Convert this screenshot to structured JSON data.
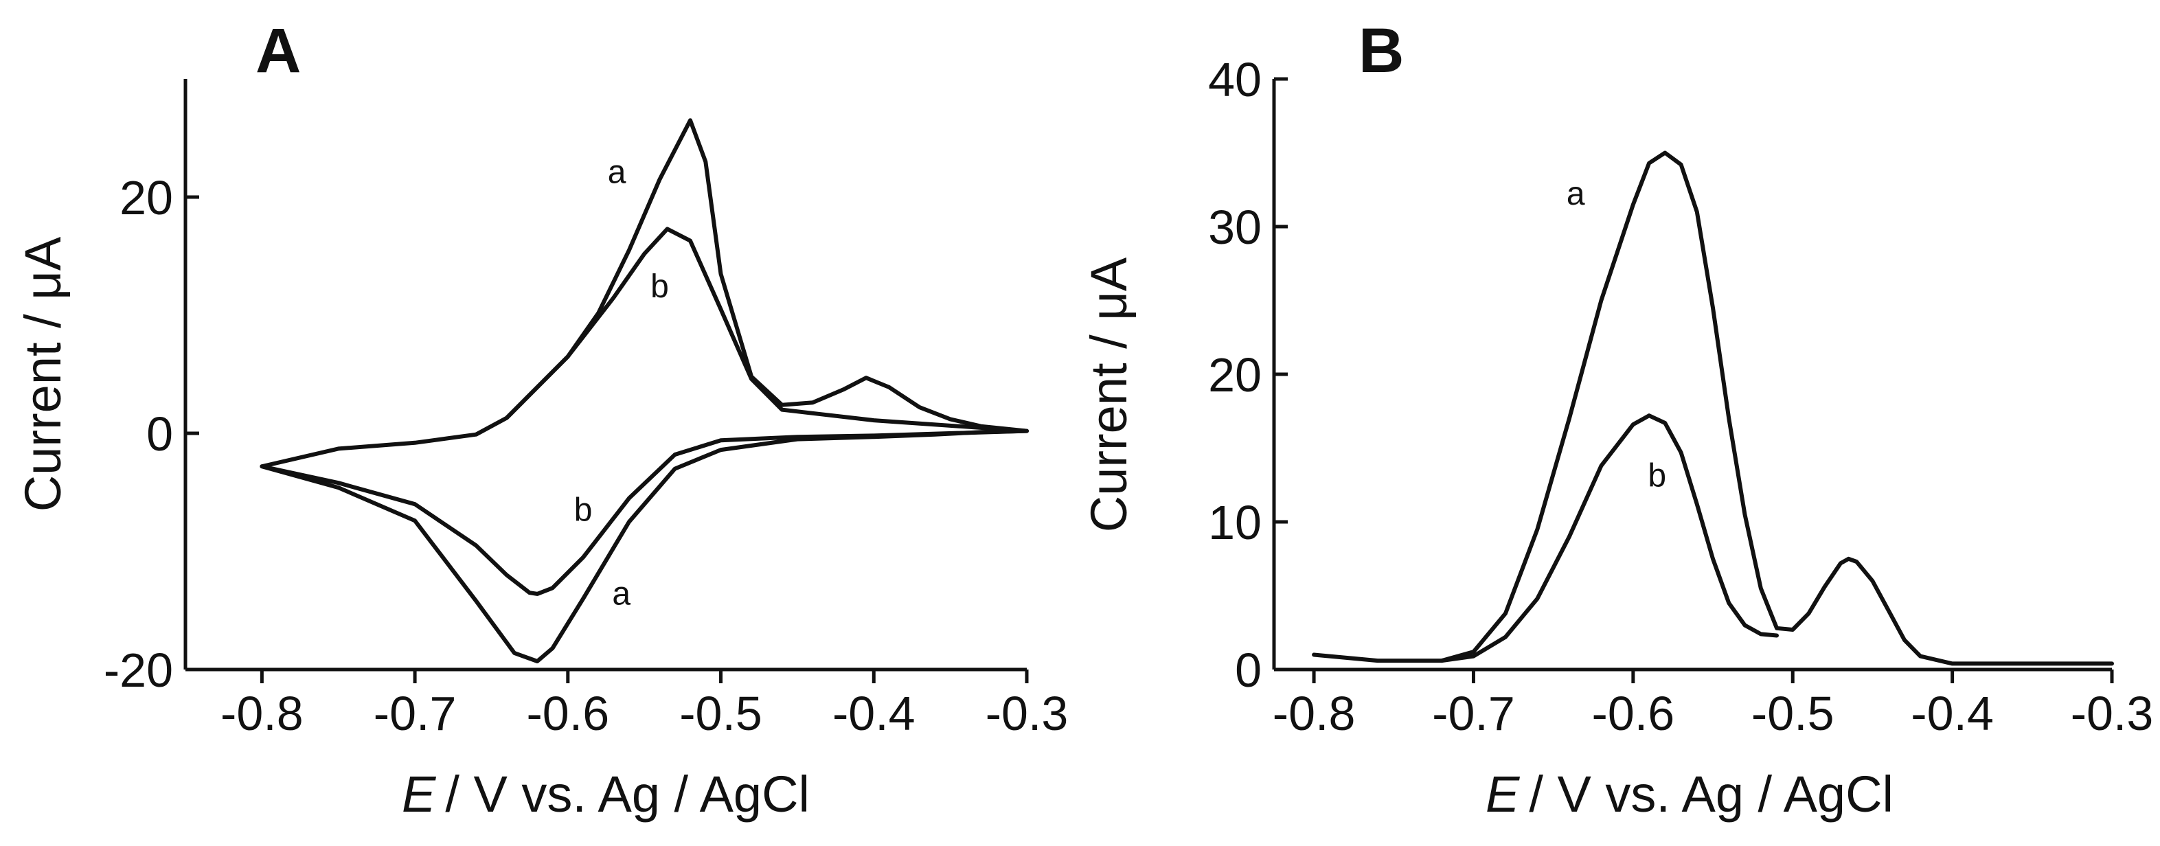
{
  "chart_data": [
    {
      "type": "line",
      "panel": "A",
      "xlabel_italic": "E",
      "xlabel_rest": "/ V vs. Ag / AgCl",
      "ylabel": "Current / μA",
      "xlim": [
        -0.85,
        -0.3
      ],
      "ylim": [
        -20,
        30
      ],
      "xticks": [
        -0.8,
        -0.7,
        -0.6,
        -0.5,
        -0.4,
        -0.3
      ],
      "xtick_labels": [
        "-0.8",
        "-0.7",
        "-0.6",
        "-0.5",
        "-0.4",
        "-0.3"
      ],
      "yticks": [
        -20,
        0,
        20
      ],
      "ytick_labels": [
        "-20",
        "0",
        "20"
      ],
      "grid": false,
      "series": [
        {
          "label": "a",
          "x": [
            -0.8,
            -0.75,
            -0.7,
            -0.66,
            -0.64,
            -0.6,
            -0.58,
            -0.56,
            -0.54,
            -0.52,
            -0.51,
            -0.5,
            -0.48,
            -0.46,
            -0.44,
            -0.42,
            -0.405,
            -0.39,
            -0.37,
            -0.35,
            -0.33,
            -0.3,
            -0.33,
            -0.36,
            -0.4,
            -0.45,
            -0.5,
            -0.53,
            -0.56,
            -0.59,
            -0.61,
            -0.62,
            -0.635,
            -0.66,
            -0.7,
            -0.75,
            -0.8
          ],
          "y": [
            -2.8,
            -1.3,
            -0.8,
            -0.1,
            1.3,
            6.5,
            10.2,
            15.5,
            21.5,
            26.5,
            23,
            13.5,
            4.8,
            2.4,
            2.6,
            3.7,
            4.7,
            3.9,
            2.2,
            1.2,
            0.6,
            0.2,
            0.1,
            -0.1,
            -0.3,
            -0.5,
            -1.4,
            -3.0,
            -7.5,
            -14.0,
            -18.2,
            -19.3,
            -18.6,
            -14.2,
            -7.4,
            -4.6,
            -2.8
          ],
          "label_pos": {
            "x": -0.568,
            "y": 21.2
          }
        },
        {
          "label": "b",
          "x": [
            -0.64,
            -0.6,
            -0.57,
            -0.55,
            -0.535,
            -0.52,
            -0.5,
            -0.48,
            -0.46,
            -0.44,
            -0.4,
            -0.3,
            -0.4,
            -0.45,
            -0.5,
            -0.53,
            -0.56,
            -0.59,
            -0.61,
            -0.62,
            -0.625,
            -0.64,
            -0.66,
            -0.7,
            -0.75,
            -0.8
          ],
          "y": [
            1.3,
            6.5,
            11.5,
            15.2,
            17.3,
            16.3,
            10.5,
            4.6,
            2.0,
            1.7,
            1.1,
            0.2,
            -0.2,
            -0.3,
            -0.6,
            -1.8,
            -5.5,
            -10.5,
            -13.1,
            -13.6,
            -13.5,
            -12.0,
            -9.5,
            -6.0,
            -4.2,
            -2.8
          ],
          "label_pos": {
            "x": -0.54,
            "y": 11.5
          }
        },
        {
          "label": "b",
          "x": [],
          "y": [],
          "label_pos": {
            "x": -0.59,
            "y": -7.4
          }
        },
        {
          "label": "a",
          "x": [],
          "y": [],
          "label_pos": {
            "x": -0.565,
            "y": -14.5
          }
        }
      ]
    },
    {
      "type": "line",
      "panel": "B",
      "xlabel_italic": "E",
      "xlabel_rest": "/ V vs. Ag / AgCl",
      "ylabel": "Current / μA",
      "xlim": [
        -0.825,
        -0.3
      ],
      "ylim": [
        0,
        40
      ],
      "xticks": [
        -0.8,
        -0.7,
        -0.6,
        -0.5,
        -0.4,
        -0.3
      ],
      "xtick_labels": [
        "-0.8",
        "-0.7",
        "-0.6",
        "-0.5",
        "-0.4",
        "-0.3"
      ],
      "yticks": [
        0,
        10,
        20,
        30,
        40
      ],
      "ytick_labels": [
        "0",
        "10",
        "20",
        "30",
        "40"
      ],
      "grid": false,
      "series": [
        {
          "label": "a",
          "x": [
            -0.8,
            -0.76,
            -0.72,
            -0.7,
            -0.68,
            -0.66,
            -0.64,
            -0.62,
            -0.6,
            -0.59,
            -0.58,
            -0.57,
            -0.56,
            -0.55,
            -0.54,
            -0.53,
            -0.52,
            -0.51,
            -0.5,
            -0.49,
            -0.48,
            -0.47,
            -0.465,
            -0.46,
            -0.45,
            -0.44,
            -0.43,
            -0.42,
            -0.4,
            -0.35,
            -0.3
          ],
          "y": [
            1.0,
            0.6,
            0.6,
            1.2,
            3.8,
            9.5,
            17.0,
            25.0,
            31.5,
            34.3,
            35.0,
            34.2,
            31.0,
            24.5,
            17.0,
            10.5,
            5.5,
            2.8,
            2.7,
            3.8,
            5.6,
            7.2,
            7.5,
            7.3,
            6.0,
            4.0,
            2.0,
            0.9,
            0.4,
            0.4,
            0.4
          ],
          "label_pos": {
            "x": -0.636,
            "y": 31.5
          }
        },
        {
          "label": "b",
          "x": [
            -0.72,
            -0.7,
            -0.68,
            -0.66,
            -0.64,
            -0.62,
            -0.6,
            -0.59,
            -0.58,
            -0.57,
            -0.56,
            -0.55,
            -0.54,
            -0.53,
            -0.52,
            -0.51
          ],
          "y": [
            0.6,
            0.9,
            2.2,
            4.8,
            9.0,
            13.8,
            16.6,
            17.2,
            16.7,
            14.7,
            11.2,
            7.5,
            4.5,
            3.0,
            2.4,
            2.3
          ],
          "label_pos": {
            "x": -0.585,
            "y": 12.4
          }
        }
      ]
    }
  ]
}
